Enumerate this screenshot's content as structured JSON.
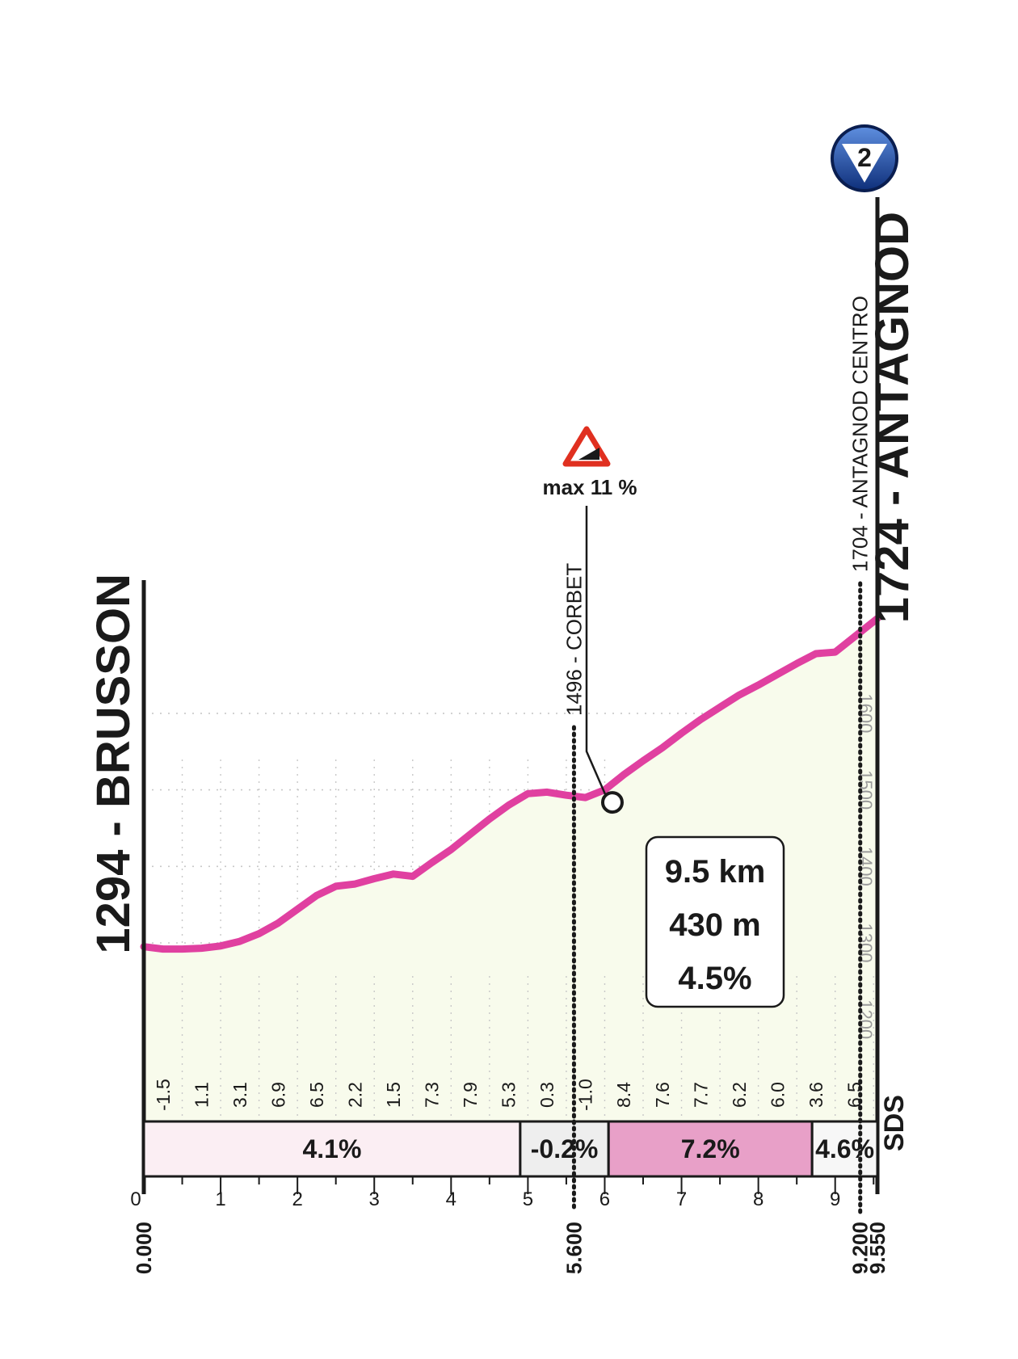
{
  "chart_data": {
    "type": "area",
    "title": "",
    "xlabel": "",
    "ylabel": "",
    "xlim": [
      0,
      9.55
    ],
    "ylim": [
      1100,
      1800
    ],
    "x_ticks": [
      "0",
      "1",
      "2",
      "3",
      "4",
      "5",
      "6",
      "7",
      "8",
      "9"
    ],
    "y_ticks": [
      "1200",
      "1300",
      "1400",
      "1500",
      "1600"
    ],
    "grid": true,
    "profile": {
      "x": [
        0,
        0.25,
        0.5,
        0.75,
        1.0,
        1.25,
        1.5,
        1.75,
        2.0,
        2.25,
        2.5,
        2.75,
        3.0,
        3.25,
        3.5,
        3.75,
        4.0,
        4.25,
        4.5,
        4.75,
        5.0,
        5.25,
        5.5,
        5.75,
        6.0,
        6.25,
        6.5,
        6.75,
        7.0,
        7.25,
        7.5,
        7.75,
        8.0,
        8.25,
        8.5,
        8.75,
        9.0,
        9.25,
        9.55
      ],
      "y": [
        1295,
        1292,
        1292,
        1293,
        1296,
        1302,
        1312,
        1326,
        1344,
        1362,
        1374,
        1377,
        1384,
        1390,
        1387,
        1405,
        1422,
        1442,
        1462,
        1480,
        1495,
        1497,
        1493,
        1490,
        1500,
        1520,
        1538,
        1555,
        1574,
        1592,
        1608,
        1624,
        1637,
        1651,
        1665,
        1678,
        1680,
        1700,
        1724
      ]
    },
    "km_grades": [
      "-1.5",
      "1.1",
      "3.1",
      "6.9",
      "6.5",
      "2.2",
      "1.5",
      "7.3",
      "7.9",
      "5.3",
      "0.3",
      "-1.0",
      "8.4",
      "7.6",
      "7.7",
      "6.2",
      "6.0",
      "3.6",
      "6.5"
    ],
    "segments": [
      {
        "label": "4.1%",
        "from_km": 0,
        "to_km": 4.9,
        "color": "#fbeef3"
      },
      {
        "label": "-0.2%",
        "from_km": 4.9,
        "to_km": 6.05,
        "color": "#eeeeee"
      },
      {
        "label": "7.2%",
        "from_km": 6.05,
        "to_km": 8.7,
        "color": "#e8a0c8"
      },
      {
        "label": "4.6%",
        "from_km": 8.7,
        "to_km": 9.55,
        "color": "#f7f7f7"
      }
    ],
    "start": {
      "label": "1294 - BRUSSON",
      "distance": "0.000"
    },
    "finish": {
      "label": "1724 - ANTAGNOD",
      "distance": "9.550"
    },
    "waypoints": [
      {
        "label": "1496 - CORBET",
        "km": 5.6,
        "distance": "5.600"
      },
      {
        "label": "1704 - ANTAGNOD CENTRO",
        "km": 9.2,
        "distance": "9.200"
      }
    ],
    "max_gradient": {
      "label": "max 11 %",
      "km": 6.1,
      "elevation": 1490
    },
    "summary": [
      "9.5 km",
      "430 m",
      "4.5%"
    ],
    "finish_marker": "2",
    "logo": "SDS",
    "colors": {
      "profile_line": "#e040a0",
      "profile_fill": "#f8fbec",
      "axis": "#1a1a1a"
    }
  }
}
